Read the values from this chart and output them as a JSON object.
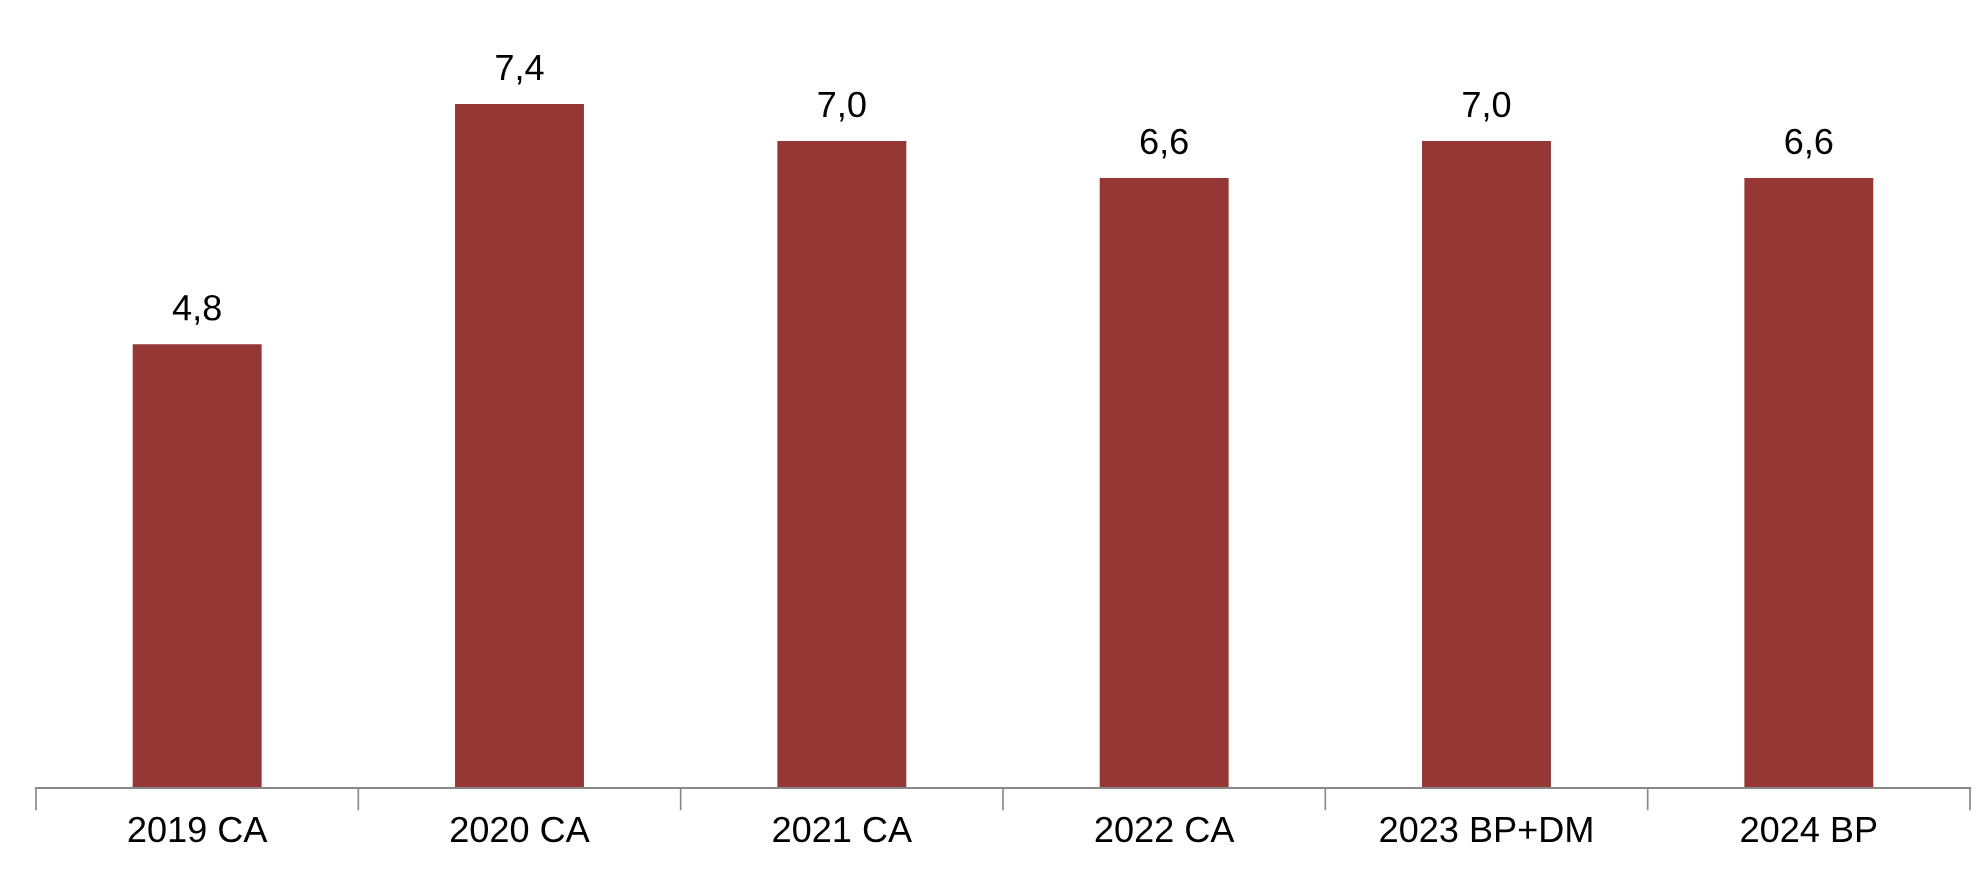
{
  "chart_data": {
    "type": "bar",
    "categories": [
      "2019 CA",
      "2020 CA",
      "2021 CA",
      "2022 CA",
      "2023 BP+DM",
      "2024 BP"
    ],
    "values": [
      4.8,
      7.4,
      7.0,
      6.6,
      7.0,
      6.6
    ],
    "value_labels": [
      "4,8",
      "7,4",
      "7,0",
      "6,6",
      "7,0",
      "6,6"
    ],
    "color": "#953735",
    "tick_labels": "x",
    "grid": false
  }
}
